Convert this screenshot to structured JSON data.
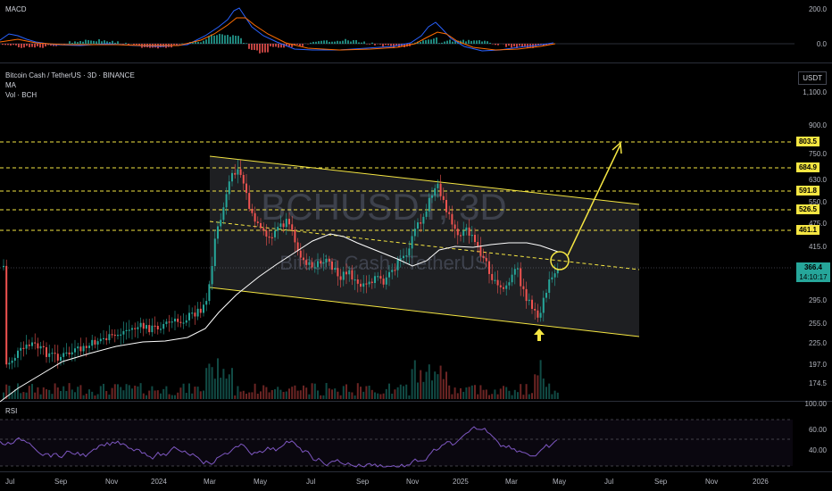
{
  "indicators": {
    "macd_label": "MACD",
    "macd_axis": [
      "200.0",
      "0.0"
    ],
    "rsi_label": "RSI",
    "rsi_axis": [
      "100.00",
      "60.00",
      "40.00"
    ]
  },
  "header": {
    "symbol_title": "Bitcoin Cash / TetherUS · 3D · BINANCE",
    "ma_label": "MA",
    "vol_label": "Vol · BCH",
    "watermark_symbol": "BCHUSDT, 3D",
    "watermark_name": "Bitcoin Cash / TetherUS"
  },
  "price_axis": {
    "currency": "USDT",
    "labels": [
      "1,100.0",
      "900.0",
      "750.0",
      "630.0",
      "550.0",
      "475.0",
      "415.0",
      "295.0",
      "255.0",
      "225.0",
      "197.0",
      "174.5"
    ]
  },
  "levels": [
    "803.5",
    "684.9",
    "591.8",
    "526.5",
    "461.1"
  ],
  "current": {
    "price": "366.4",
    "countdown": "14:10:17"
  },
  "time_axis": [
    "Jul",
    "Sep",
    "Nov",
    "2024",
    "Mar",
    "May",
    "Jul",
    "Sep",
    "Nov",
    "2025",
    "Mar",
    "May",
    "Jul",
    "Sep",
    "Nov",
    "2026"
  ],
  "colors": {
    "bull": "#26a69a",
    "bear": "#ef5350",
    "level": "#f5e642",
    "ma": "#ffffff",
    "rsi": "#7e57c2"
  }
}
